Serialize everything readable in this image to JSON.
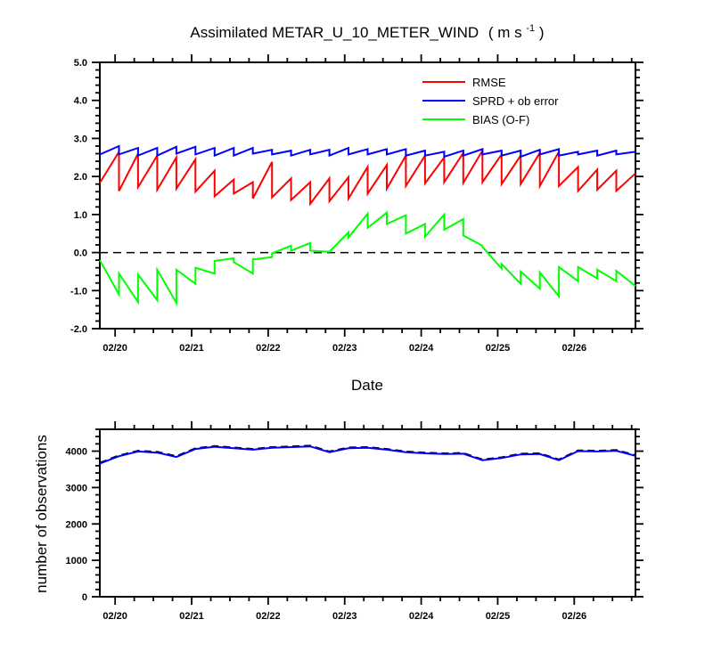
{
  "chart_data": [
    {
      "type": "line",
      "title": "Assimilated METAR_U_10_METER_WIND",
      "title_units": "( m s",
      "title_units_sup": "-1",
      "title_units_close": " )",
      "xlabel": "Date",
      "ylabel": "",
      "ylim": [
        -2.0,
        5.0
      ],
      "xlim": [
        19.8,
        26.8
      ],
      "x_unit": "day of February",
      "yticks": [
        "-2.0",
        "-1.0",
        "0.0",
        "1.0",
        "2.0",
        "3.0",
        "4.0",
        "5.0"
      ],
      "ytick_values": [
        -2,
        -1,
        0,
        1,
        2,
        3,
        4,
        5
      ],
      "xticks": [
        "02/20",
        "02/21",
        "02/22",
        "02/23",
        "02/24",
        "02/25",
        "02/26"
      ],
      "xtick_values": [
        20,
        21,
        22,
        23,
        24,
        25,
        26
      ],
      "grid": false,
      "zero_line": "dashed",
      "legend": {
        "placement": "top-right",
        "entries": [
          "RMSE",
          "SPRD + ob error",
          "BIAS (O-F)"
        ]
      },
      "series": [
        {
          "name": "RMSE",
          "color": "#ff0000",
          "x": [
            19.8,
            20.05,
            20.05,
            20.3,
            20.3,
            20.55,
            20.55,
            20.8,
            20.8,
            21.05,
            21.05,
            21.3,
            21.3,
            21.55,
            21.55,
            21.8,
            21.8,
            22.05,
            22.05,
            22.3,
            22.3,
            22.55,
            22.55,
            22.8,
            22.8,
            23.05,
            23.05,
            23.3,
            23.3,
            23.55,
            23.55,
            23.8,
            23.8,
            24.05,
            24.05,
            24.3,
            24.3,
            24.55,
            24.55,
            24.8,
            24.8,
            25.05,
            25.05,
            25.3,
            25.3,
            25.55,
            25.55,
            25.8,
            25.8,
            26.05,
            26.05,
            26.3,
            26.3,
            26.55,
            26.55,
            26.8
          ],
          "y": [
            1.83,
            2.65,
            1.62,
            2.6,
            1.72,
            2.55,
            1.65,
            2.5,
            1.68,
            2.45,
            1.6,
            2.15,
            1.48,
            1.92,
            1.55,
            1.85,
            1.42,
            2.38,
            1.45,
            1.95,
            1.38,
            1.85,
            1.28,
            1.95,
            1.35,
            1.98,
            1.42,
            2.25,
            1.55,
            2.3,
            1.68,
            2.55,
            1.75,
            2.55,
            1.82,
            2.5,
            1.85,
            2.62,
            1.83,
            2.68,
            1.85,
            2.58,
            1.8,
            2.55,
            1.8,
            2.62,
            1.75,
            2.65,
            1.75,
            2.25,
            1.62,
            2.18,
            1.65,
            2.15,
            1.62,
            2.08
          ]
        },
        {
          "name": "SPRD + ob error",
          "color": "#0000ff",
          "x": [
            19.8,
            20.05,
            20.05,
            20.3,
            20.3,
            20.55,
            20.55,
            20.8,
            20.8,
            21.05,
            21.05,
            21.3,
            21.3,
            21.55,
            21.55,
            21.8,
            21.8,
            22.05,
            22.05,
            22.3,
            22.3,
            22.55,
            22.55,
            22.8,
            22.8,
            23.05,
            23.05,
            23.3,
            23.3,
            23.55,
            23.55,
            23.8,
            23.8,
            24.05,
            24.05,
            24.3,
            24.3,
            24.55,
            24.55,
            24.8,
            24.8,
            25.05,
            25.05,
            25.3,
            25.3,
            25.55,
            25.55,
            25.8,
            25.8,
            26.05,
            26.05,
            26.3,
            26.3,
            26.55,
            26.55,
            26.8
          ],
          "y": [
            2.58,
            2.8,
            2.58,
            2.75,
            2.55,
            2.75,
            2.55,
            2.78,
            2.6,
            2.78,
            2.58,
            2.75,
            2.55,
            2.75,
            2.55,
            2.75,
            2.6,
            2.7,
            2.58,
            2.68,
            2.55,
            2.7,
            2.58,
            2.7,
            2.55,
            2.75,
            2.58,
            2.72,
            2.58,
            2.72,
            2.58,
            2.72,
            2.55,
            2.68,
            2.55,
            2.65,
            2.52,
            2.68,
            2.55,
            2.72,
            2.58,
            2.68,
            2.55,
            2.68,
            2.52,
            2.7,
            2.58,
            2.72,
            2.55,
            2.65,
            2.58,
            2.68,
            2.55,
            2.68,
            2.58,
            2.65
          ]
        },
        {
          "name": "BIAS (O-F)",
          "color": "#00ff00",
          "x": [
            19.8,
            20.05,
            20.05,
            20.3,
            20.3,
            20.55,
            20.55,
            20.8,
            20.8,
            21.05,
            21.05,
            21.3,
            21.3,
            21.55,
            21.55,
            21.8,
            21.8,
            22.05,
            22.05,
            22.3,
            22.3,
            22.55,
            22.55,
            22.8,
            22.8,
            23.05,
            23.05,
            23.3,
            23.3,
            23.55,
            23.55,
            23.8,
            23.8,
            24.05,
            24.05,
            24.3,
            24.3,
            24.55,
            24.55,
            24.8,
            24.8,
            25.05,
            25.05,
            25.3,
            25.3,
            25.55,
            25.55,
            25.8,
            25.8,
            26.05,
            26.05,
            26.3,
            26.3,
            26.55,
            26.55,
            26.8
          ],
          "y": [
            -0.2,
            -1.1,
            -0.55,
            -1.3,
            -0.58,
            -1.25,
            -0.45,
            -1.32,
            -0.45,
            -0.82,
            -0.4,
            -0.55,
            -0.22,
            -0.15,
            -0.25,
            -0.55,
            -0.18,
            -0.12,
            -0.02,
            0.18,
            0.05,
            0.25,
            0.05,
            0.02,
            0.02,
            0.53,
            0.4,
            1.02,
            0.65,
            1.05,
            0.75,
            0.98,
            0.5,
            0.75,
            0.42,
            1.0,
            0.6,
            0.88,
            0.45,
            0.18,
            0.15,
            -0.42,
            -0.3,
            -0.82,
            -0.5,
            -0.95,
            -0.52,
            -1.15,
            -0.38,
            -0.75,
            -0.38,
            -0.68,
            -0.45,
            -0.75,
            -0.48,
            -0.88
          ]
        }
      ]
    },
    {
      "type": "line",
      "title": "",
      "xlabel": "",
      "ylabel": "number of observations",
      "ylim": [
        0,
        4600
      ],
      "xlim": [
        19.8,
        26.8
      ],
      "x_unit": "day of February",
      "yticks": [
        "0",
        "1000",
        "2000",
        "3000",
        "4000"
      ],
      "ytick_values": [
        0,
        1000,
        2000,
        3000,
        4000
      ],
      "xticks": [
        "02/20",
        "02/21",
        "02/22",
        "02/23",
        "02/24",
        "02/25",
        "02/26"
      ],
      "xtick_values": [
        20,
        21,
        22,
        23,
        24,
        25,
        26
      ],
      "grid": false,
      "series": [
        {
          "name": "",
          "color": "#000000",
          "style": "dashed",
          "x": [
            19.8,
            20.05,
            20.3,
            20.55,
            20.8,
            21.05,
            21.3,
            21.55,
            21.8,
            22.05,
            22.3,
            22.55,
            22.8,
            23.05,
            23.3,
            23.55,
            23.8,
            24.05,
            24.3,
            24.55,
            24.8,
            25.05,
            25.3,
            25.55,
            25.8,
            26.05,
            26.3,
            26.55,
            26.8
          ],
          "y": [
            3680,
            3880,
            4010,
            3980,
            3860,
            4080,
            4140,
            4100,
            4060,
            4110,
            4130,
            4150,
            3990,
            4100,
            4110,
            4060,
            3990,
            3960,
            3940,
            3950,
            3770,
            3830,
            3930,
            3940,
            3770,
            4020,
            4010,
            4030,
            3890
          ]
        },
        {
          "name": "",
          "color": "#0000ff",
          "style": "solid",
          "x": [
            19.8,
            20.05,
            20.3,
            20.55,
            20.8,
            21.05,
            21.3,
            21.55,
            21.8,
            22.05,
            22.3,
            22.55,
            22.8,
            23.05,
            23.3,
            23.55,
            23.8,
            24.05,
            24.3,
            24.55,
            24.8,
            25.05,
            25.3,
            25.55,
            25.8,
            26.05,
            26.3,
            26.55,
            26.8
          ],
          "y": [
            3660,
            3860,
            3990,
            3960,
            3840,
            4060,
            4120,
            4080,
            4040,
            4090,
            4110,
            4130,
            3970,
            4080,
            4090,
            4040,
            3970,
            3940,
            3920,
            3930,
            3750,
            3810,
            3910,
            3920,
            3750,
            4000,
            3990,
            4010,
            3870
          ]
        }
      ]
    }
  ]
}
